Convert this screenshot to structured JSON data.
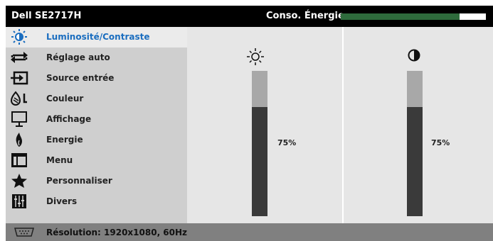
{
  "header": {
    "model": "Dell SE2717H",
    "energy_label": "Conso. Énergie",
    "energy_level": 0.82
  },
  "sidebar": {
    "items": [
      {
        "label": "Luminosité/Contraste",
        "icon": "brightness-icon",
        "active": true
      },
      {
        "label": "Réglage auto",
        "icon": "auto-adjust-icon"
      },
      {
        "label": "Source entrée",
        "icon": "input-source-icon"
      },
      {
        "label": "Couleur",
        "icon": "color-icon"
      },
      {
        "label": "Affichage",
        "icon": "display-icon"
      },
      {
        "label": "Energie",
        "icon": "energy-icon"
      },
      {
        "label": "Menu",
        "icon": "menu-icon"
      },
      {
        "label": "Personnaliser",
        "icon": "star-icon"
      },
      {
        "label": "Divers",
        "icon": "others-icon"
      }
    ]
  },
  "sliders": {
    "brightness": {
      "value": 0.75,
      "label": "75%",
      "icon": "sun-icon"
    },
    "contrast": {
      "value": 0.75,
      "label": "75%",
      "icon": "contrast-icon"
    }
  },
  "footer": {
    "resolution": "Résolution: 1920x1080, 60Hz",
    "icon": "vga-connector-icon"
  },
  "colors": {
    "accent": "#1a6dbf",
    "energy": "#2e6b3c",
    "slider_fill": "#3a3a3a",
    "slider_track": "#a8a8a8"
  }
}
